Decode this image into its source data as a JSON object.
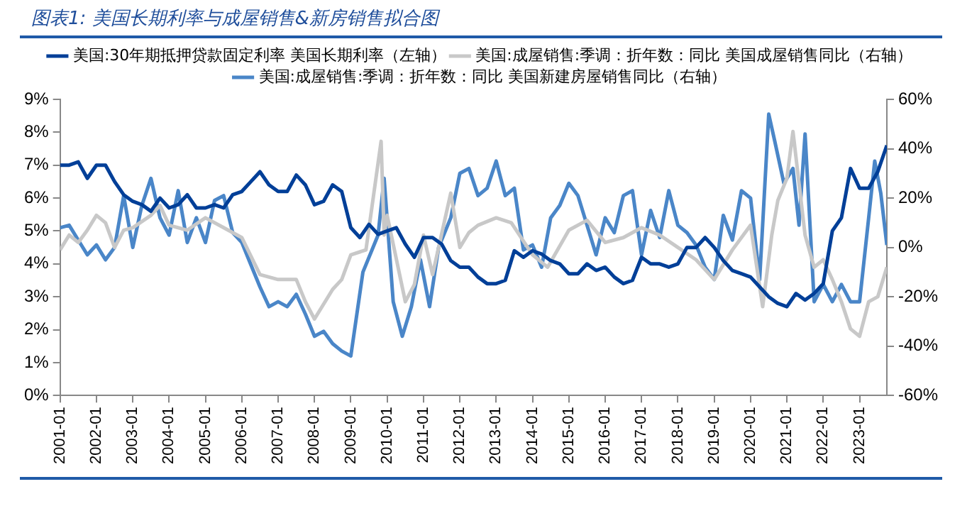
{
  "chart_data": {
    "type": "line",
    "title": "图表1: 美国长期利率与成屋销售&新房销售拟合图",
    "xlim": [
      "2001-01",
      "2023-10"
    ],
    "xticks": [
      "2001-01",
      "2002-01",
      "2003-01",
      "2004-01",
      "2005-01",
      "2006-01",
      "2007-01",
      "2008-01",
      "2009-01",
      "2010-01",
      "2011-01",
      "2012-01",
      "2013-01",
      "2014-01",
      "2015-01",
      "2016-01",
      "2017-01",
      "2018-01",
      "2019-01",
      "2020-01",
      "2021-01",
      "2022-01",
      "2023-01"
    ],
    "ylim": [
      0,
      9
    ],
    "yticks": [
      {
        "value": 0,
        "label": "0%"
      },
      {
        "value": 1,
        "label": "1%"
      },
      {
        "value": 2,
        "label": "2%"
      },
      {
        "value": 3,
        "label": "3%"
      },
      {
        "value": 4,
        "label": "4%"
      },
      {
        "value": 5,
        "label": "5%"
      },
      {
        "value": 6,
        "label": "6%"
      },
      {
        "value": 7,
        "label": "7%"
      },
      {
        "value": 8,
        "label": "8%"
      },
      {
        "value": 9,
        "label": "9%"
      }
    ],
    "y2lim": [
      -60,
      60
    ],
    "y2ticks": [
      {
        "value": -60,
        "label": "-60%"
      },
      {
        "value": -40,
        "label": "-40%"
      },
      {
        "value": -20,
        "label": "-20%"
      },
      {
        "value": 0,
        "label": "0%"
      },
      {
        "value": 20,
        "label": "20%"
      },
      {
        "value": 40,
        "label": "40%"
      },
      {
        "value": 60,
        "label": "60%"
      }
    ],
    "grid": false,
    "legend": "top",
    "marker": "none",
    "line_style": "solid",
    "series": [
      {
        "name": "美国:30年期抵押贷款固定利率 美国长期利率（左轴）",
        "color": "#003f98",
        "x": [
          "2001-01",
          "2001-04",
          "2001-07",
          "2001-10",
          "2002-01",
          "2002-04",
          "2002-07",
          "2002-10",
          "2003-01",
          "2003-04",
          "2003-07",
          "2003-10",
          "2004-01",
          "2004-04",
          "2004-07",
          "2004-10",
          "2005-01",
          "2005-04",
          "2005-07",
          "2005-10",
          "2006-01",
          "2006-04",
          "2006-07",
          "2006-10",
          "2007-01",
          "2007-04",
          "2007-07",
          "2007-10",
          "2008-01",
          "2008-04",
          "2008-07",
          "2008-10",
          "2009-01",
          "2009-04",
          "2009-07",
          "2009-10",
          "2010-01",
          "2010-04",
          "2010-07",
          "2010-10",
          "2011-01",
          "2011-04",
          "2011-07",
          "2011-10",
          "2012-01",
          "2012-04",
          "2012-07",
          "2012-10",
          "2013-01",
          "2013-04",
          "2013-07",
          "2013-10",
          "2014-01",
          "2014-04",
          "2014-07",
          "2014-10",
          "2015-01",
          "2015-04",
          "2015-07",
          "2015-10",
          "2016-01",
          "2016-04",
          "2016-07",
          "2016-10",
          "2017-01",
          "2017-04",
          "2017-07",
          "2017-10",
          "2018-01",
          "2018-04",
          "2018-07",
          "2018-10",
          "2019-01",
          "2019-04",
          "2019-07",
          "2019-10",
          "2020-01",
          "2020-04",
          "2020-07",
          "2020-10",
          "2021-01",
          "2021-04",
          "2021-07",
          "2021-10",
          "2022-01",
          "2022-04",
          "2022-07",
          "2022-10",
          "2023-01",
          "2023-04",
          "2023-07",
          "2023-10"
        ],
        "values": [
          7.0,
          7.0,
          7.1,
          6.6,
          7.0,
          7.0,
          6.5,
          6.1,
          5.9,
          5.8,
          5.6,
          6.0,
          5.7,
          5.8,
          6.1,
          5.7,
          5.7,
          5.8,
          5.7,
          6.1,
          6.2,
          6.5,
          6.8,
          6.4,
          6.2,
          6.2,
          6.7,
          6.4,
          5.8,
          5.9,
          6.4,
          6.2,
          5.1,
          4.8,
          5.2,
          4.9,
          5.0,
          5.1,
          4.6,
          4.2,
          4.8,
          4.8,
          4.6,
          4.1,
          3.9,
          3.9,
          3.6,
          3.4,
          3.4,
          3.5,
          4.4,
          4.2,
          4.4,
          4.3,
          4.1,
          4.0,
          3.7,
          3.7,
          4.0,
          3.8,
          3.9,
          3.6,
          3.4,
          3.5,
          4.2,
          4.0,
          4.0,
          3.9,
          4.0,
          4.5,
          4.5,
          4.8,
          4.5,
          4.1,
          3.8,
          3.7,
          3.6,
          3.3,
          3.0,
          2.8,
          2.7,
          3.1,
          2.9,
          3.1,
          3.4,
          5.0,
          5.4,
          6.9,
          6.3,
          6.3,
          6.8,
          7.6
        ]
      },
      {
        "name": "美国:成屋销售:季调：折年数：同比 美国成屋销售同比（右轴）",
        "color": "#c8c8c8",
        "axis": "y2",
        "x": [
          "2001-01",
          "2001-04",
          "2001-07",
          "2001-10",
          "2002-01",
          "2002-04",
          "2002-07",
          "2002-10",
          "2003-01",
          "2003-07",
          "2003-10",
          "2004-01",
          "2004-07",
          "2005-01",
          "2005-07",
          "2006-01",
          "2006-07",
          "2007-01",
          "2007-07",
          "2007-10",
          "2008-01",
          "2008-07",
          "2008-10",
          "2009-01",
          "2009-06",
          "2009-11",
          "2009-12",
          "2010-01",
          "2010-07",
          "2010-10",
          "2011-01",
          "2011-04",
          "2011-10",
          "2012-01",
          "2012-04",
          "2012-07",
          "2013-01",
          "2013-06",
          "2014-01",
          "2014-06",
          "2015-01",
          "2015-07",
          "2016-01",
          "2016-07",
          "2017-01",
          "2017-07",
          "2018-01",
          "2018-07",
          "2019-01",
          "2019-07",
          "2020-01",
          "2020-05",
          "2020-08",
          "2020-10",
          "2021-01",
          "2021-03",
          "2021-07",
          "2021-10",
          "2022-01",
          "2022-04",
          "2022-07",
          "2022-10",
          "2023-01",
          "2023-04",
          "2023-07",
          "2023-10"
        ],
        "values": [
          -1,
          5,
          2,
          7,
          13,
          10,
          0,
          7,
          8,
          13,
          17,
          9,
          7,
          12,
          8,
          4,
          -11,
          -13,
          -13,
          -22,
          -29,
          -17,
          -13,
          -3,
          -1,
          43,
          5,
          13,
          -22,
          -15,
          5,
          -11,
          22,
          0,
          6,
          9,
          12,
          10,
          -3,
          -8,
          7,
          11,
          2,
          4,
          8,
          5,
          0,
          -5,
          -13,
          -1,
          9,
          -24,
          5,
          19,
          28,
          47,
          5,
          -8,
          -5,
          -13,
          -22,
          -33,
          -36,
          -22,
          -20,
          -8
        ]
      },
      {
        "name": "美国:成屋销售:季调：折年数：同比 美国新建房屋销售同比（右轴）",
        "color": "#4a86c8",
        "axis": "y2",
        "x": [
          "2001-01",
          "2001-04",
          "2001-07",
          "2001-10",
          "2002-01",
          "2002-04",
          "2002-07",
          "2002-10",
          "2003-01",
          "2003-04",
          "2003-07",
          "2003-10",
          "2004-01",
          "2004-04",
          "2004-07",
          "2004-10",
          "2005-01",
          "2005-04",
          "2005-07",
          "2005-10",
          "2006-01",
          "2006-04",
          "2006-07",
          "2006-10",
          "2007-01",
          "2007-04",
          "2007-07",
          "2007-10",
          "2008-01",
          "2008-04",
          "2008-07",
          "2008-10",
          "2009-01",
          "2009-05",
          "2009-10",
          "2009-12",
          "2010-03",
          "2010-06",
          "2010-09",
          "2010-12",
          "2011-03",
          "2011-06",
          "2011-10",
          "2012-01",
          "2012-04",
          "2012-07",
          "2012-10",
          "2013-01",
          "2013-04",
          "2013-07",
          "2013-10",
          "2014-01",
          "2014-04",
          "2014-07",
          "2014-10",
          "2015-01",
          "2015-04",
          "2015-07",
          "2015-10",
          "2016-01",
          "2016-04",
          "2016-07",
          "2016-10",
          "2017-01",
          "2017-04",
          "2017-07",
          "2017-10",
          "2018-01",
          "2018-04",
          "2018-07",
          "2018-10",
          "2019-01",
          "2019-04",
          "2019-07",
          "2019-10",
          "2020-01",
          "2020-04",
          "2020-07",
          "2020-09",
          "2020-12",
          "2021-03",
          "2021-05",
          "2021-07",
          "2021-10",
          "2022-01",
          "2022-04",
          "2022-07",
          "2022-10",
          "2023-01",
          "2023-04",
          "2023-06",
          "2023-08",
          "2023-10"
        ],
        "values": [
          8,
          9,
          3,
          -3,
          1,
          -5,
          0,
          21,
          0,
          17,
          28,
          12,
          5,
          23,
          2,
          12,
          2,
          19,
          21,
          6,
          2,
          -7,
          -16,
          -24,
          -22,
          -24,
          -19,
          -27,
          -36,
          -34,
          -39,
          -42,
          -44,
          -10,
          5,
          28,
          -22,
          -36,
          -24,
          -5,
          -24,
          0,
          12,
          30,
          32,
          21,
          24,
          35,
          21,
          24,
          -1,
          1,
          -8,
          12,
          17,
          26,
          21,
          9,
          -3,
          12,
          6,
          21,
          23,
          -3,
          15,
          4,
          23,
          9,
          6,
          1,
          -8,
          -13,
          13,
          3,
          23,
          20,
          -13,
          54,
          43,
          26,
          32,
          9,
          46,
          -22,
          -15,
          -22,
          -15,
          -22,
          -22,
          12,
          35,
          22,
          1
        ]
      }
    ]
  }
}
